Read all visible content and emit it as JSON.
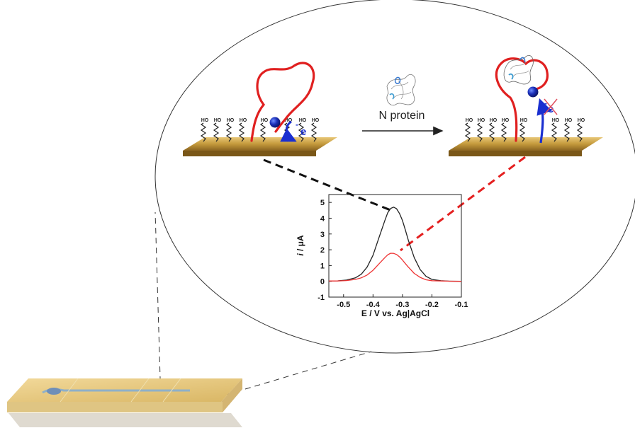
{
  "diagram": {
    "arrow_label": "N protein",
    "electron_label": "e",
    "electron_sign": "-",
    "linker_label": "HO"
  },
  "chart_data": {
    "type": "line",
    "title": "",
    "xlabel": "E / V vs. Ag|AgCl",
    "ylabel": "i / μA",
    "ylabel_parts": {
      "italic": "i",
      "rest": " / μA"
    },
    "xlim": [
      -0.55,
      -0.1
    ],
    "ylim": [
      -1,
      5.5
    ],
    "x_ticks": [
      -0.5,
      -0.4,
      -0.3,
      -0.2,
      -0.1
    ],
    "y_ticks": [
      -1,
      0,
      1,
      2,
      3,
      4,
      5
    ],
    "x_tick_labels": [
      "-0.5",
      "-0.4",
      "-0.3",
      "-0.2",
      "-0.1"
    ],
    "y_tick_labels": [
      "-1",
      "0",
      "1",
      "2",
      "3",
      "4",
      "5"
    ],
    "grid": false,
    "series": [
      {
        "color": "#222222",
        "x": [
          -0.55,
          -0.52,
          -0.49,
          -0.46,
          -0.44,
          -0.42,
          -0.4,
          -0.38,
          -0.36,
          -0.35,
          -0.34,
          -0.33,
          -0.32,
          -0.31,
          -0.3,
          -0.29,
          -0.28,
          -0.26,
          -0.24,
          -0.22,
          -0.2,
          -0.17,
          -0.14,
          -0.1
        ],
        "y": [
          0.02,
          0.03,
          0.08,
          0.22,
          0.45,
          0.9,
          1.65,
          2.75,
          3.85,
          4.35,
          4.62,
          4.7,
          4.6,
          4.3,
          3.85,
          3.25,
          2.6,
          1.5,
          0.75,
          0.32,
          0.12,
          0.04,
          0.01,
          0.0
        ]
      },
      {
        "color": "#ee3333",
        "x": [
          -0.55,
          -0.52,
          -0.49,
          -0.46,
          -0.44,
          -0.42,
          -0.4,
          -0.38,
          -0.36,
          -0.35,
          -0.34,
          -0.33,
          -0.32,
          -0.31,
          -0.3,
          -0.29,
          -0.28,
          -0.26,
          -0.24,
          -0.22,
          -0.2,
          -0.17,
          -0.14,
          -0.1
        ],
        "y": [
          0.02,
          0.02,
          0.05,
          0.12,
          0.22,
          0.4,
          0.7,
          1.1,
          1.5,
          1.68,
          1.78,
          1.77,
          1.7,
          1.55,
          1.35,
          1.12,
          0.9,
          0.5,
          0.25,
          0.1,
          0.04,
          0.02,
          0.01,
          0.0
        ]
      }
    ]
  }
}
